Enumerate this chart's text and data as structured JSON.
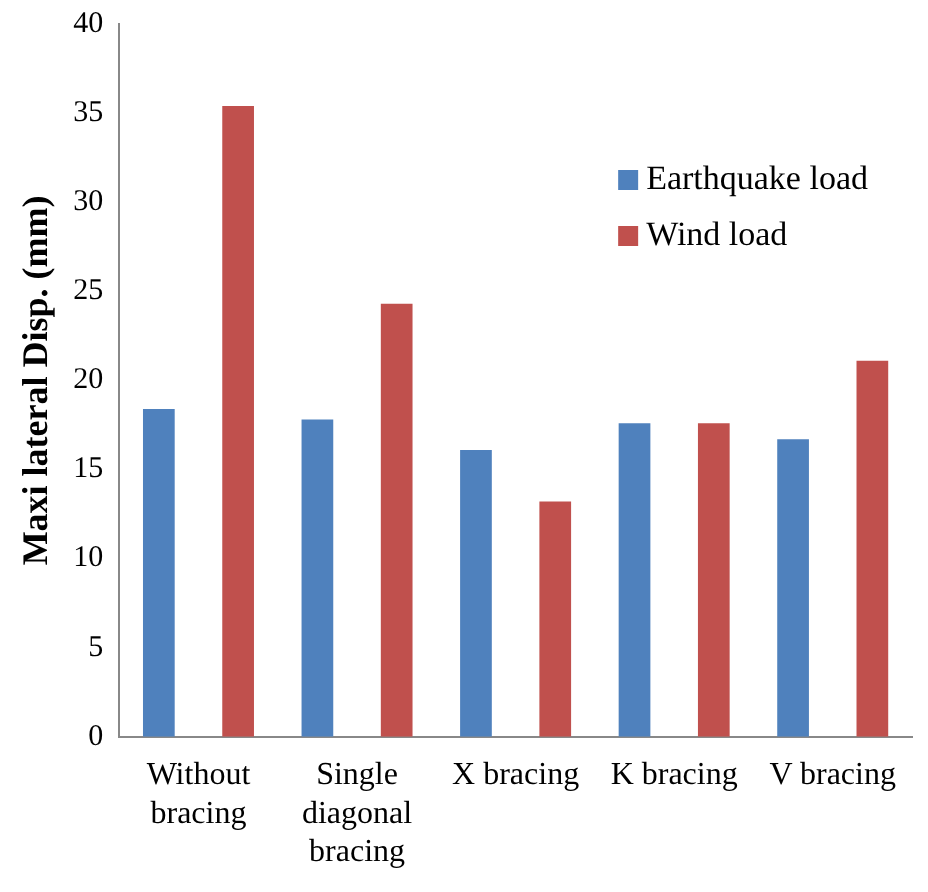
{
  "chart_data": {
    "type": "bar",
    "ylabel": "Maxi lateral Disp. (mm)",
    "categories": [
      "Without bracing",
      "Single diagonal bracing",
      "X bracing",
      "K bracing",
      "V bracing"
    ],
    "series": [
      {
        "name": "Earthquake load",
        "color": "#4f81bd",
        "values": [
          18.4,
          17.8,
          16.1,
          17.6,
          16.7
        ]
      },
      {
        "name": "Wind load",
        "color": "#c0504d",
        "values": [
          35.4,
          24.3,
          13.2,
          17.6,
          21.1
        ]
      }
    ],
    "ylim": [
      0,
      40
    ],
    "yticks": [
      0,
      5,
      10,
      15,
      20,
      25,
      30,
      35,
      40
    ],
    "grid": false,
    "legend": "right"
  }
}
